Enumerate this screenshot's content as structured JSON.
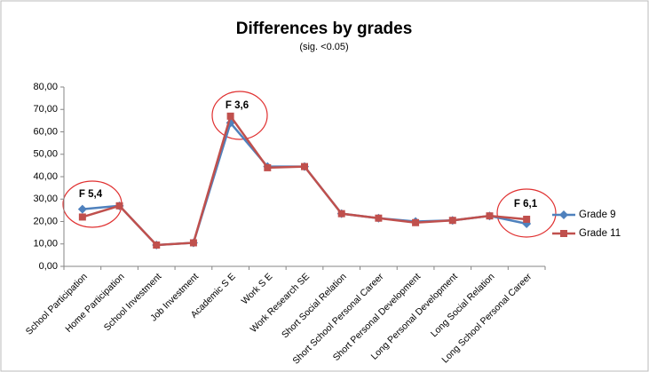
{
  "chart_data": {
    "type": "line",
    "title": "Differences by grades",
    "subtitle": "(sig. <0.05)",
    "categories": [
      "School Participation",
      "Home Participation",
      "School Investment",
      "Job Investment",
      "Academic S E",
      "Work S E",
      "Work Research  SE",
      "Short Social Relation",
      "Short School Personal Career",
      "Short Personal Development",
      "Long Personal Development",
      "Long Social Relation",
      "Long School Personal Career"
    ],
    "series": [
      {
        "name": "Grade 9",
        "color": "#4f81bd",
        "marker": "diamond",
        "values": [
          25.5,
          27,
          9.5,
          10.5,
          64,
          44.5,
          44.5,
          23.5,
          21.5,
          20,
          20.5,
          22.5,
          19
        ]
      },
      {
        "name": "Grade 11",
        "color": "#c0504d",
        "marker": "square",
        "values": [
          22,
          27,
          9.5,
          10.5,
          67,
          44,
          44.5,
          23.5,
          21.5,
          19.5,
          20.5,
          22.5,
          21
        ]
      }
    ],
    "ylim": [
      0,
      80
    ],
    "yticks": [
      {
        "value": 0,
        "label": "0,00"
      },
      {
        "value": 10,
        "label": "10,00"
      },
      {
        "value": 20,
        "label": "20,00"
      },
      {
        "value": 30,
        "label": "30,00"
      },
      {
        "value": 40,
        "label": "40,00"
      },
      {
        "value": 50,
        "label": "50,00"
      },
      {
        "value": 60,
        "label": "60,00"
      },
      {
        "value": 70,
        "label": "70,00"
      },
      {
        "value": 80,
        "label": "80,00"
      }
    ],
    "grid": false,
    "legend": "right",
    "annotations": [
      "F 5,4",
      "F 3,6",
      "F 6,1"
    ]
  }
}
